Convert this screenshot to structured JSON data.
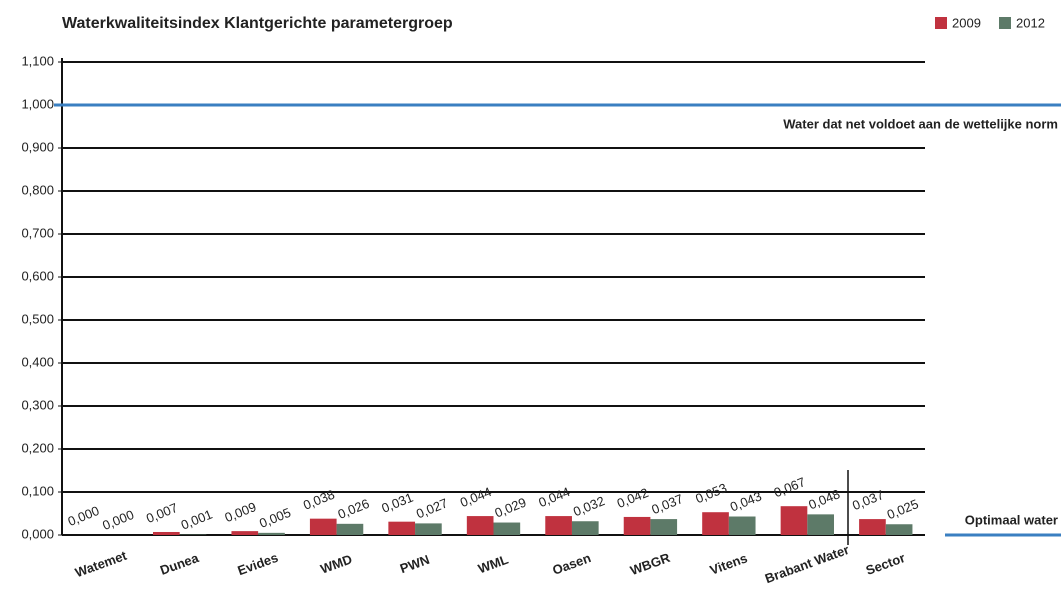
{
  "chart_data": {
    "type": "bar",
    "title": "Waterkwaliteitsindex Klantgerichte parametergroep",
    "categories": [
      "Watemet",
      "Dunea",
      "Evides",
      "WMD",
      "PWN",
      "WML",
      "Oasen",
      "WBGR",
      "Vitens",
      "Brabant Water",
      "Sector"
    ],
    "series": [
      {
        "name": "2009",
        "color": "#c0323f",
        "values": [
          0.0,
          0.007,
          0.009,
          0.038,
          0.031,
          0.044,
          0.044,
          0.042,
          0.053,
          0.067,
          0.037
        ],
        "value_labels": [
          "0,000",
          "0,007",
          "0,009",
          "0,038",
          "0,031",
          "0,044",
          "0,044",
          "0,042",
          "0,053",
          "0,067",
          "0,037"
        ]
      },
      {
        "name": "2012",
        "color": "#5d7a68",
        "values": [
          0.0,
          0.001,
          0.005,
          0.026,
          0.027,
          0.029,
          0.032,
          0.037,
          0.043,
          0.048,
          0.025
        ],
        "value_labels": [
          "0,000",
          "0,001",
          "0,005",
          "0,026",
          "0,027",
          "0,029",
          "0,032",
          "0,037",
          "0,043",
          "0,048",
          "0,025"
        ]
      }
    ],
    "ylim": [
      0,
      1.1
    ],
    "yticks": [
      {
        "value": 0,
        "label": "0,000"
      },
      {
        "value": 0.1,
        "label": "0,100"
      },
      {
        "value": 0.2,
        "label": "0,200"
      },
      {
        "value": 0.3,
        "label": "0,300"
      },
      {
        "value": 0.4,
        "label": "0,400"
      },
      {
        "value": 0.5,
        "label": "0,500"
      },
      {
        "value": 0.6,
        "label": "0,600"
      },
      {
        "value": 0.7,
        "label": "0,700"
      },
      {
        "value": 0.8,
        "label": "0,800"
      },
      {
        "value": 0.9,
        "label": "0,900"
      },
      {
        "value": 1.0,
        "label": "1,000"
      },
      {
        "value": 1.1,
        "label": "1,100"
      }
    ],
    "grid": true,
    "legend": "top-right",
    "reference_lines": [
      {
        "value": 1.0,
        "label": "Water dat net voldoet aan de wettelijke norm",
        "color": "#3a7fc1"
      },
      {
        "value": 0,
        "label": "Optimaal water",
        "color": "#3a7fc1"
      }
    ]
  }
}
